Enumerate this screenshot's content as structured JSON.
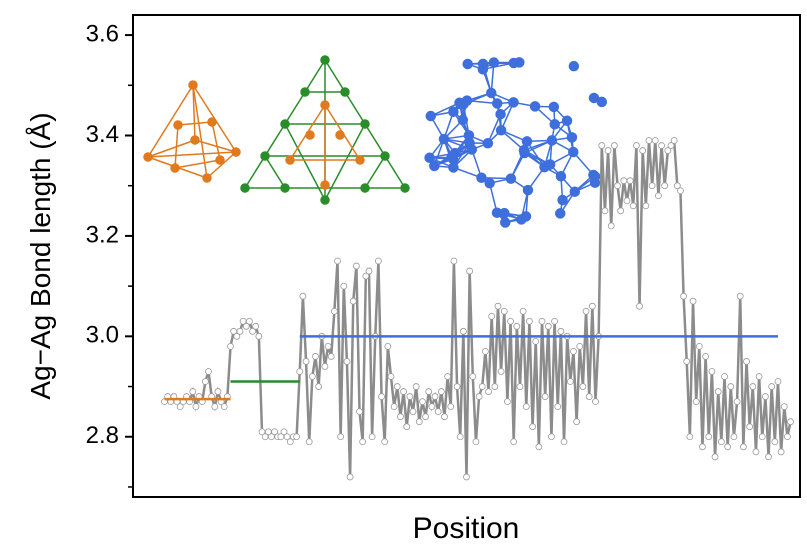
{
  "chart_data": {
    "type": "line",
    "y_label": "Ag−Ag Bond length (Å)",
    "x_label": "Position",
    "ylim": [
      2.68,
      3.64
    ],
    "yticks": [
      2.8,
      {
        "value": 3,
        "label": "3.0"
      },
      3.2,
      3.4,
      3.6
    ],
    "yminor": [
      2.7,
      2.9,
      3.1,
      3.3,
      3.5
    ],
    "xlim": [
      -10,
      202
    ],
    "x": [
      0,
      1,
      2,
      3,
      4,
      5,
      6,
      7,
      8,
      9,
      10,
      11,
      12,
      13,
      14,
      15,
      16,
      17,
      18,
      19,
      20,
      21,
      22,
      23,
      24,
      25,
      26,
      27,
      28,
      29,
      30,
      31,
      32,
      33,
      34,
      35,
      36,
      37,
      38,
      39,
      40,
      41,
      42,
      43,
      44,
      45,
      46,
      47,
      48,
      49,
      50,
      51,
      52,
      53,
      54,
      55,
      56,
      57,
      58,
      59,
      60,
      61,
      62,
      63,
      64,
      65,
      66,
      67,
      68,
      69,
      70,
      71,
      72,
      73,
      74,
      75,
      76,
      77,
      78,
      79,
      80,
      81,
      82,
      83,
      84,
      85,
      86,
      87,
      88,
      89,
      90,
      91,
      92,
      93,
      94,
      95,
      96,
      97,
      98,
      99,
      100,
      101,
      102,
      103,
      104,
      105,
      106,
      107,
      108,
      109,
      110,
      111,
      112,
      113,
      114,
      115,
      116,
      117,
      118,
      119,
      120,
      121,
      122,
      123,
      124,
      125,
      126,
      127,
      128,
      129,
      130,
      131,
      132,
      133,
      134,
      135,
      136,
      137,
      138,
      139,
      140,
      141,
      142,
      143,
      144,
      145,
      146,
      147,
      148,
      149,
      150,
      151,
      152,
      153,
      154,
      155,
      156,
      157,
      158,
      159,
      160,
      161,
      162,
      163,
      164,
      165,
      166,
      167,
      168,
      169,
      170,
      171,
      172,
      173,
      174,
      175,
      176,
      177,
      178,
      179,
      180,
      181,
      182,
      183,
      184,
      185,
      186,
      187,
      188,
      189,
      190,
      191,
      192,
      193,
      194,
      195,
      196,
      197,
      198,
      199
    ],
    "series": [
      {
        "color": "#8c8c8c",
        "values": [
          2.87,
          2.88,
          2.87,
          2.88,
          2.87,
          2.86,
          2.87,
          2.88,
          2.87,
          2.89,
          2.86,
          2.88,
          2.87,
          2.91,
          2.93,
          2.88,
          2.86,
          2.89,
          2.87,
          2.86,
          2.88,
          2.98,
          3.01,
          3.0,
          3.01,
          3.03,
          3.02,
          3.03,
          3.01,
          3.02,
          3.0,
          2.81,
          2.8,
          2.81,
          2.8,
          2.81,
          2.8,
          2.8,
          2.81,
          2.8,
          2.79,
          2.8,
          2.8,
          2.93,
          3.08,
          2.95,
          2.79,
          2.92,
          2.96,
          2.9,
          3.0,
          2.94,
          2.98,
          2.96,
          3.05,
          3.15,
          2.8,
          3.1,
          2.95,
          2.72,
          3.07,
          3.14,
          2.85,
          2.79,
          3.12,
          3.13,
          2.8,
          3.0,
          3.15,
          2.88,
          2.79,
          2.98,
          2.92,
          2.86,
          2.9,
          2.84,
          2.89,
          2.82,
          2.88,
          2.85,
          2.9,
          2.83,
          2.87,
          2.84,
          2.89,
          2.86,
          2.88,
          2.85,
          2.89,
          2.84,
          2.92,
          2.86,
          3.15,
          2.9,
          2.8,
          3.01,
          2.72,
          3.13,
          2.92,
          2.79,
          2.88,
          2.9,
          2.97,
          2.89,
          3.04,
          2.9,
          3.06,
          2.93,
          3.05,
          2.87,
          3.03,
          2.79,
          3.02,
          2.9,
          3.05,
          2.86,
          3.03,
          2.82,
          2.99,
          2.78,
          3.03,
          2.88,
          3.02,
          2.8,
          3.03,
          2.86,
          3.01,
          2.79,
          3.0,
          2.91,
          2.97,
          2.83,
          2.98,
          2.9,
          3.05,
          2.88,
          3.06,
          2.87,
          3.0,
          3.38,
          3.25,
          3.37,
          3.22,
          3.38,
          3.3,
          3.25,
          3.31,
          3.27,
          3.31,
          3.26,
          3.38,
          3.06,
          3.37,
          3.26,
          3.39,
          3.3,
          3.39,
          3.28,
          3.38,
          3.3,
          3.37,
          3.38,
          3.39,
          3.3,
          3.29,
          3.08,
          2.95,
          2.8,
          3.07,
          2.87,
          2.98,
          2.78,
          2.96,
          2.8,
          2.93,
          2.76,
          2.89,
          2.79,
          2.92,
          2.78,
          2.9,
          2.8,
          2.87,
          3.08,
          2.78,
          2.95,
          2.82,
          2.9,
          2.77,
          2.92,
          2.8,
          2.88,
          2.76,
          2.9,
          2.79,
          2.91,
          2.77,
          2.86,
          2.8,
          2.83
        ]
      }
    ],
    "segments": [
      {
        "color": "#e07a1f",
        "value": 2.875,
        "x": [
          0,
          21
        ]
      },
      {
        "color": "#2a8c2a",
        "value": 2.91,
        "x": [
          21,
          43
        ]
      },
      {
        "color": "#3e6fdc",
        "value": 3.0,
        "x": [
          43,
          195
        ]
      }
    ]
  }
}
